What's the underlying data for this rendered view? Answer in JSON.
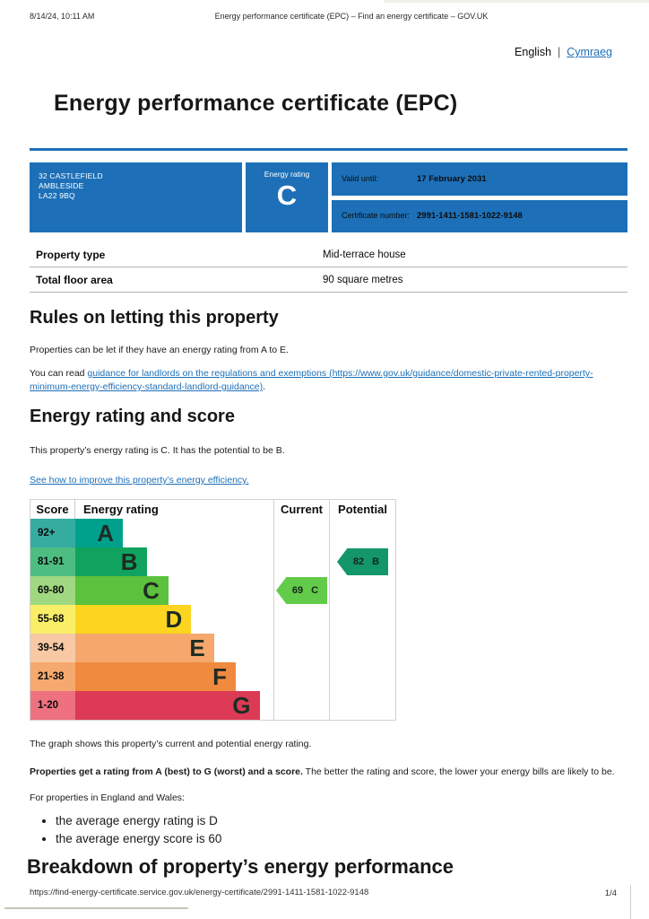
{
  "meta": {
    "printed_at": "8/14/24, 10:11 AM",
    "doc_title": "Energy performance certificate (EPC) – Find an energy certificate – GOV.UK"
  },
  "language": {
    "current": "English",
    "separator": "|",
    "other": "Cymraeg"
  },
  "page_title": "Energy performance certificate (EPC)",
  "summary_banner": {
    "background": "#1d70b8",
    "address_lines": [
      "32 CASTLEFIELD",
      "AMBLESIDE",
      "LA22 9BQ"
    ],
    "energy_rating_label": "Energy rating",
    "energy_rating": "C",
    "valid_until_label": "Valid until:",
    "valid_until": "17 February 2031",
    "certificate_number_label": "Certificate number:",
    "certificate_number": "2991-1411-1581-1022-9148"
  },
  "property_facts": {
    "rows": [
      {
        "label": "Property type",
        "value": "Mid-terrace house"
      },
      {
        "label": "Total floor area",
        "value": "90 square metres"
      }
    ]
  },
  "rules_section": {
    "heading": "Rules on letting this property",
    "paragraph1": "Properties can be let if they have an energy rating from A to E.",
    "paragraph2_prefix": "You can read ",
    "paragraph2_link": "guidance for landlords on the regulations and exemptions (https://www.gov.uk/guidance/domestic-private-rented-property-minimum-energy-efficiency-standard-landlord-guidance)",
    "paragraph2_suffix": "."
  },
  "rating_section": {
    "heading": "Energy rating and score",
    "paragraph": "This property’s energy rating is C. It has the potential to be B.",
    "improve_link": "See how to improve this property’s energy efficiency."
  },
  "chart_data": {
    "type": "bar",
    "title": "EPC energy efficiency rating bands with current and potential scores",
    "columns": {
      "score": "Score",
      "rating": "Energy rating",
      "current": "Current",
      "potential": "Potential"
    },
    "bands": [
      {
        "range": "92+",
        "letter": "A",
        "color": "#00a18c",
        "tint": "#35aca0",
        "width_pct": 24
      },
      {
        "range": "81-91",
        "letter": "B",
        "color": "#0fa35f",
        "tint": "#4dbd81",
        "width_pct": 36
      },
      {
        "range": "69-80",
        "letter": "C",
        "color": "#5cc13c",
        "tint": "#9fd880",
        "width_pct": 47
      },
      {
        "range": "55-68",
        "letter": "D",
        "color": "#fbd520",
        "tint": "#f9ee67",
        "width_pct": 58.5
      },
      {
        "range": "39-54",
        "letter": "E",
        "color": "#f5a76c",
        "tint": "#f8c9a4",
        "width_pct": 70
      },
      {
        "range": "21-38",
        "letter": "F",
        "color": "#f08a3e",
        "tint": "#f5a96f",
        "width_pct": 81
      },
      {
        "range": "1-20",
        "letter": "G",
        "color": "#dc3a55",
        "tint": "#ee7180",
        "width_pct": 93
      }
    ],
    "current": {
      "score": "69",
      "letter": "C",
      "color": "#62cb49",
      "band_range": "69-80"
    },
    "potential": {
      "score": "82",
      "letter": "B",
      "color": "#13976a",
      "band_range": "81-91"
    }
  },
  "below_chart": {
    "paragraph1": "The graph shows this property’s current and potential energy rating.",
    "lead_bold": "Properties get a rating from A (best) to G (worst) and a score.",
    "lead_rest": " The better the rating and score, the lower your energy bills are likely to be.",
    "paragraph3": "For properties in England and Wales:",
    "bullets": [
      "the average energy rating is D",
      "the average energy score is 60"
    ]
  },
  "breakdown_heading": "Breakdown of property’s energy performance",
  "footer": {
    "url": "https://find-energy-certificate.service.gov.uk/energy-certificate/2991-1411-1581-1022-9148",
    "page_indicator": "1/4"
  }
}
